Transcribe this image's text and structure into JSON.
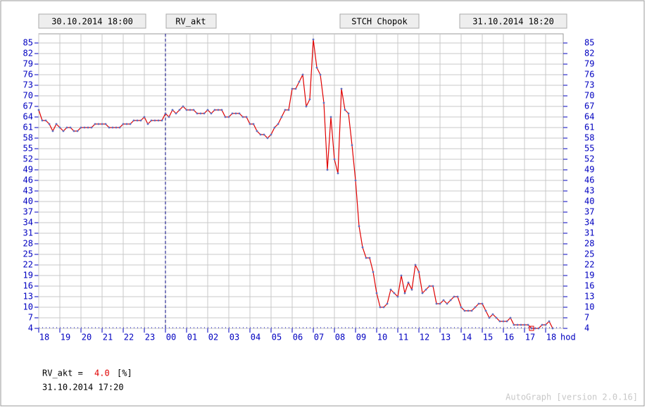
{
  "header": {
    "start": "30.10.2014 18:00",
    "variable": "RV_akt",
    "station": "STCH Chopok",
    "end": "31.10.2014 18:20"
  },
  "chart_data": {
    "type": "line",
    "color": "#e00000",
    "marker_color": "#6070c0",
    "grid": true,
    "day_boundary": 360,
    "x_unit": "hod",
    "xlim": [
      0,
      1490
    ],
    "ylim": [
      4,
      85
    ],
    "xticks": [
      {
        "value": 0,
        "label": "18"
      },
      {
        "value": 60,
        "label": "19"
      },
      {
        "value": 120,
        "label": "20"
      },
      {
        "value": 180,
        "label": "21"
      },
      {
        "value": 240,
        "label": "22"
      },
      {
        "value": 300,
        "label": "23"
      },
      {
        "value": 360,
        "label": "00"
      },
      {
        "value": 420,
        "label": "01"
      },
      {
        "value": 480,
        "label": "02"
      },
      {
        "value": 540,
        "label": "03"
      },
      {
        "value": 600,
        "label": "04"
      },
      {
        "value": 660,
        "label": "05"
      },
      {
        "value": 720,
        "label": "06"
      },
      {
        "value": 780,
        "label": "07"
      },
      {
        "value": 840,
        "label": "08"
      },
      {
        "value": 900,
        "label": "09"
      },
      {
        "value": 960,
        "label": "10"
      },
      {
        "value": 1020,
        "label": "11"
      },
      {
        "value": 1080,
        "label": "12"
      },
      {
        "value": 1140,
        "label": "13"
      },
      {
        "value": 1200,
        "label": "14"
      },
      {
        "value": 1260,
        "label": "15"
      },
      {
        "value": 1320,
        "label": "16"
      },
      {
        "value": 1380,
        "label": "17"
      },
      {
        "value": 1440,
        "label": "18"
      }
    ],
    "yticks": [
      4,
      7,
      10,
      13,
      16,
      19,
      22,
      25,
      28,
      31,
      34,
      37,
      40,
      43,
      46,
      49,
      52,
      55,
      58,
      61,
      64,
      67,
      70,
      73,
      76,
      79,
      82,
      85
    ],
    "x": [
      0,
      10,
      20,
      30,
      40,
      50,
      60,
      70,
      80,
      90,
      100,
      110,
      120,
      130,
      140,
      150,
      160,
      170,
      180,
      190,
      200,
      210,
      220,
      230,
      240,
      250,
      260,
      270,
      280,
      290,
      300,
      310,
      320,
      330,
      340,
      350,
      360,
      370,
      380,
      390,
      400,
      410,
      420,
      430,
      440,
      450,
      460,
      470,
      480,
      490,
      500,
      510,
      520,
      530,
      540,
      550,
      560,
      570,
      580,
      590,
      600,
      610,
      620,
      630,
      640,
      650,
      660,
      670,
      680,
      690,
      700,
      710,
      720,
      730,
      740,
      750,
      760,
      770,
      780,
      790,
      800,
      810,
      820,
      830,
      840,
      850,
      860,
      870,
      880,
      890,
      900,
      910,
      920,
      930,
      940,
      950,
      960,
      970,
      980,
      990,
      1000,
      1010,
      1020,
      1030,
      1040,
      1050,
      1060,
      1070,
      1080,
      1090,
      1100,
      1110,
      1120,
      1130,
      1140,
      1150,
      1160,
      1170,
      1180,
      1190,
      1200,
      1210,
      1220,
      1230,
      1240,
      1250,
      1260,
      1270,
      1280,
      1290,
      1300,
      1310,
      1320,
      1330,
      1340,
      1350,
      1360,
      1370,
      1380,
      1390,
      1400,
      1410,
      1420,
      1430,
      1440,
      1450,
      1460
    ],
    "values": [
      66,
      63,
      63,
      62,
      60,
      62,
      61,
      60,
      61,
      61,
      60,
      60,
      61,
      61,
      61,
      61,
      62,
      62,
      62,
      62,
      61,
      61,
      61,
      61,
      62,
      62,
      62,
      63,
      63,
      63,
      64,
      62,
      63,
      63,
      63,
      63,
      65,
      64,
      66,
      65,
      66,
      67,
      66,
      66,
      66,
      65,
      65,
      65,
      66,
      65,
      66,
      66,
      66,
      64,
      64,
      65,
      65,
      65,
      64,
      64,
      62,
      62,
      60,
      59,
      59,
      58,
      59,
      61,
      62,
      64,
      66,
      66,
      72,
      72,
      74,
      76,
      67,
      69,
      86,
      78,
      76,
      68,
      49,
      64,
      52,
      48,
      72,
      66,
      65,
      56,
      46,
      33,
      27,
      24,
      24,
      20,
      14,
      10,
      10,
      11,
      15,
      14,
      13,
      19,
      14,
      17,
      15,
      22,
      20,
      14,
      15,
      16,
      16,
      11,
      11,
      12,
      11,
      12,
      13,
      13,
      10,
      9,
      9,
      9,
      10,
      11,
      11,
      9,
      7,
      8,
      7,
      6,
      6,
      6,
      7,
      5,
      5,
      5,
      5,
      5,
      4,
      4,
      4,
      5,
      5,
      6,
      4
    ],
    "highlight_index": 140
  },
  "readout": {
    "name": "RV_akt =",
    "value": "4.0",
    "unit": "[%]",
    "time": "31.10.2014 17:20"
  },
  "footer": "AutoGraph [version 2.0.16]"
}
